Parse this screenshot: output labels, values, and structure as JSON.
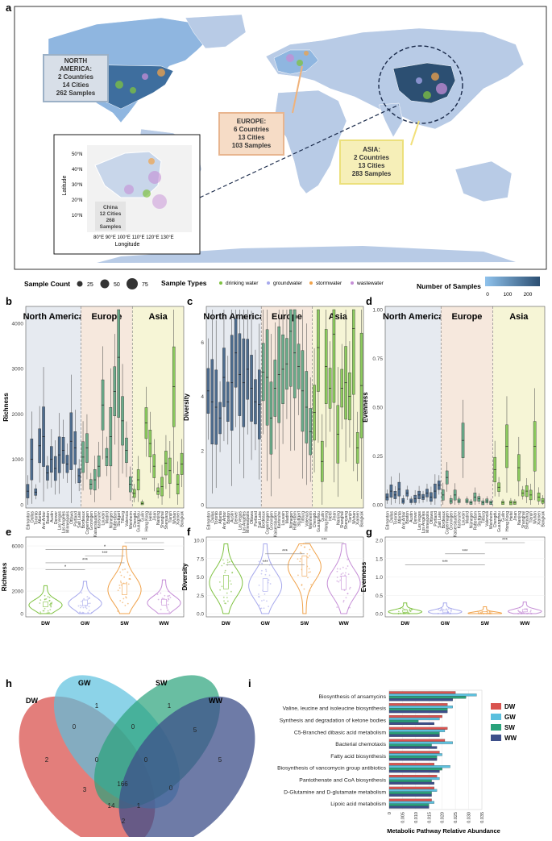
{
  "panel_letters": {
    "a": "a",
    "b": "b",
    "c": "c",
    "d": "d",
    "e": "e",
    "f": "f",
    "g": "g",
    "h": "h",
    "i": "i"
  },
  "colors": {
    "land": "#b8cbe6",
    "ocean": "#ffffff",
    "na": "#3e6e9e",
    "na_light": "#8fb6e0",
    "china": "#2c4f72",
    "dw": "#7fc241",
    "gw": "#a6a8ec",
    "sw": "#f0a24a",
    "ww": "#c58dd6",
    "na_bg": "#e6eaf0",
    "eu_bg": "#f6e8dd",
    "as_bg": "#f6f5d6",
    "box_na": "#4e6d8f",
    "box_eu": "#6aab8a",
    "box_as": "#8ccb5e"
  },
  "map": {
    "north_america_box": {
      "line1": "NORTH",
      "line2": "AMERICA:",
      "line3": "2 Countries",
      "line4": "14 Cities",
      "line5": "262 Samples"
    },
    "europe_box": {
      "line1": "EUROPE:",
      "line2": "6 Countries",
      "line3": "13 Cities",
      "line4": "103 Samples"
    },
    "asia_box": {
      "line1": "ASIA:",
      "line2": "2 Countries",
      "line3": "13 Cities",
      "line4": "283 Samples"
    },
    "inset": {
      "lat_ticks": [
        "50°N",
        "40°N",
        "30°N",
        "20°N",
        "10°N"
      ],
      "lon_ticks": "80°E 90°E 100°E 110°E 120°E 130°E",
      "xlabel": "Longitude",
      "ylabel": "Latitude",
      "china_box": {
        "line1": "China",
        "line2": "12 Cities",
        "line3": "268",
        "line4": "Samples"
      }
    }
  },
  "legend": {
    "sample_count_title": "Sample Count",
    "sizes": [
      "25",
      "50",
      "75"
    ],
    "sample_types_title": "Sample Types",
    "types": [
      "drinking water",
      "groundwater",
      "stormwater",
      "wastewater"
    ],
    "num_samples_title": "Number of Samples",
    "num_ticks": [
      "0",
      "100",
      "200"
    ]
  },
  "regions": [
    "North America",
    "Europe",
    "Asia"
  ],
  "chart_data": [
    {
      "type": "box",
      "panel": "b",
      "ylabel": "Richness",
      "ylim": [
        0,
        4300
      ],
      "yticks": [
        "0",
        "1000",
        "2000",
        "3000",
        "4000"
      ],
      "categories": [
        "Edmonton",
        "Dallas",
        "Toronto",
        "Atlanta",
        "Ann Arbor",
        "Boston",
        "Austin",
        "Denver",
        "Las Vegas",
        "Los Angeles",
        "Minneapolis",
        "Ottawa",
        "Portland",
        "Salt Lake",
        "Bordeaux",
        "Copenhagen",
        "Groningen",
        "Kaiserslautern",
        "Karlsruhe",
        "Louvain",
        "Madrid",
        "Nijmegen",
        "Rotterdam",
        "Stuttgart",
        "Tilburg",
        "Valencia",
        "Weinheim",
        "Chengdu",
        "Guangzhou",
        "Guilin",
        "Hong Kong",
        "Hefei",
        "Jinan",
        "Nanjing",
        "Shanghai",
        "Shenyang",
        "Tianjin",
        "Wuhan",
        "Xiamen",
        "Bangkok"
      ],
      "medians": [
        300,
        1000,
        280,
        1300,
        1500,
        700,
        1000,
        800,
        1100,
        1200,
        900,
        1400,
        1250,
        640,
        1050,
        1250,
        450,
        550,
        850,
        2200,
        1050,
        1500,
        2500,
        3250,
        1850,
        1200,
        450,
        250,
        550,
        30,
        1800,
        1350,
        850,
        300,
        400,
        920,
        750,
        2600,
        450,
        900
      ]
    },
    {
      "type": "box",
      "panel": "c",
      "ylabel": "Diversity",
      "ylim": [
        0,
        7.2
      ],
      "yticks": [
        "0",
        "2",
        "4",
        "6"
      ],
      "categories": [
        "Edmonton",
        "Dallas",
        "Toronto",
        "Atlanta",
        "Ann Arbor",
        "Boston",
        "Austin",
        "Denver",
        "Las Vegas",
        "Los Angeles",
        "Minneapolis",
        "Ottawa",
        "Portland",
        "Salt Lake",
        "Bordeaux",
        "Copenhagen",
        "Groningen",
        "Kaiserslautern",
        "Karlsruhe",
        "Louvain",
        "Madrid",
        "Nijmegen",
        "Rotterdam",
        "Stuttgart",
        "Tilburg",
        "Valencia",
        "Weinheim",
        "Chengdu",
        "Guangzhou",
        "Guilin",
        "Hong Kong",
        "Hefei",
        "Jinan",
        "Nanjing",
        "Shanghai",
        "Shenyang",
        "Tianjin",
        "Wuhan",
        "Xiamen",
        "Bangkok"
      ],
      "medians": [
        4.2,
        3.8,
        3.6,
        3.2,
        4.7,
        3.8,
        4.5,
        5.6,
        4.8,
        4.5,
        5.0,
        4.3,
        3.8,
        3.7,
        4.9,
        4.7,
        3.2,
        4.3,
        4.8,
        5.0,
        5.2,
        6.4,
        5.6,
        5.1,
        4.2,
        3.6,
        2.7,
        3.4,
        5.8,
        1.6,
        5.1,
        4.3,
        6.3,
        2.6,
        4.3,
        4.5,
        4.0,
        6.5,
        2.1,
        4.4
      ]
    },
    {
      "type": "box",
      "panel": "d",
      "ylabel": "Evenness",
      "ylim": [
        0,
        1.0
      ],
      "yticks": [
        "0.00",
        "0.25",
        "0.50",
        "0.75",
        "1.00"
      ],
      "categories": [
        "Edmonton",
        "Dallas",
        "Toronto",
        "Atlanta",
        "Ann Arbor",
        "Boston",
        "Austin",
        "Denver",
        "Las Vegas",
        "Los Angeles",
        "Minneapolis",
        "Ottawa",
        "Portland",
        "Salt Lake",
        "Bordeaux",
        "Copenhagen",
        "Groningen",
        "Kaiserslautern",
        "Karlsruhe",
        "Louvain",
        "Madrid",
        "Nijmegen",
        "Rotterdam",
        "Stuttgart",
        "Tilburg",
        "Valencia",
        "Weinheim",
        "Chengdu",
        "Guangzhou",
        "Guilin",
        "Hong Kong",
        "Hefei",
        "Jinan",
        "Nanjing",
        "Shanghai",
        "Shenyang",
        "Tianjin",
        "Wuhan",
        "Xiamen",
        "Bangkok"
      ],
      "medians": [
        0.04,
        0.07,
        0.05,
        0.08,
        0.02,
        0.06,
        0.02,
        0.03,
        0.05,
        0.04,
        0.06,
        0.04,
        0.07,
        0.1,
        0.05,
        0.14,
        0.02,
        0.05,
        0.02,
        0.33,
        0.02,
        0.01,
        0.04,
        0.03,
        0.01,
        0.02,
        0.01,
        0.18,
        0.09,
        0.01,
        0.3,
        0.01,
        0.01,
        0.19,
        0.06,
        0.07,
        0.05,
        0.3,
        0.04,
        0.02
      ]
    },
    {
      "type": "violin",
      "panel": "e",
      "ylabel": "Richness",
      "ylim": [
        0,
        6500
      ],
      "yticks": [
        "0",
        "2000",
        "4000",
        "6000"
      ],
      "categories": [
        "DW",
        "GW",
        "SW",
        "WW"
      ],
      "medians": [
        750,
        900,
        2100,
        950
      ],
      "significance": [
        "*",
        "***",
        "***",
        "*",
        "***"
      ]
    },
    {
      "type": "violin",
      "panel": "f",
      "ylabel": "Diversity",
      "ylim": [
        0,
        10
      ],
      "yticks": [
        "0.0",
        "2.5",
        "5.0",
        "7.5",
        "10.0"
      ],
      "categories": [
        "DW",
        "GW",
        "SW",
        "WW"
      ],
      "medians": [
        4.2,
        3.8,
        6.4,
        4.1
      ],
      "significance": [
        "***",
        "***",
        "***"
      ]
    },
    {
      "type": "violin",
      "panel": "g",
      "ylabel": "Evenness",
      "ylim": [
        0,
        2.0
      ],
      "yticks": [
        "0.0",
        "0.5",
        "1.0",
        "1.5",
        "2.0"
      ],
      "categories": [
        "DW",
        "GW",
        "SW",
        "WW"
      ],
      "medians": [
        0.05,
        0.05,
        0.01,
        0.06
      ],
      "significance": [
        "***",
        "***",
        "***"
      ]
    },
    {
      "type": "venn",
      "panel": "h",
      "sets": [
        "DW",
        "GW",
        "SW",
        "WW"
      ],
      "regions": [
        "2",
        "1",
        "1",
        "5",
        "0",
        "0",
        "5",
        "0",
        "0",
        "0",
        "3",
        "166",
        "14",
        "1",
        "2"
      ]
    },
    {
      "type": "bar",
      "panel": "i",
      "xlabel": "Metabolic Pathway Relative Abundance",
      "xlim": [
        0,
        0.035
      ],
      "xticks": [
        "0",
        "0.005",
        "0.010",
        "0.015",
        "0.020",
        "0.025",
        "0.030",
        "0.035"
      ],
      "categories": [
        "Biosynthesis of ansamycins",
        "Valine, leucine and isoleucine biosynthesis",
        "Synthesis and degradation of ketone bodies",
        "C5-Branched dibasic acid metabolism",
        "Bacterial chemotaxis",
        "Fatty acid biosynthesis",
        "Biosynthesis of vancomycin group antibiotics",
        "Pantothenate and CoA biosynthesis",
        "D-Glutamine and D-glutamate metabolism",
        "Lipoic acid metabolism"
      ],
      "series": [
        {
          "name": "DW",
          "values": [
            0.025,
            0.022,
            0.02,
            0.022,
            0.021,
            0.019,
            0.017,
            0.018,
            0.017,
            0.016
          ]
        },
        {
          "name": "GW",
          "values": [
            0.033,
            0.024,
            0.019,
            0.021,
            0.024,
            0.02,
            0.023,
            0.019,
            0.018,
            0.017
          ]
        },
        {
          "name": "SW",
          "values": [
            0.029,
            0.022,
            0.011,
            0.019,
            0.016,
            0.018,
            0.02,
            0.016,
            0.016,
            0.015
          ]
        },
        {
          "name": "WW",
          "values": [
            0.024,
            0.022,
            0.017,
            0.019,
            0.018,
            0.018,
            0.019,
            0.017,
            0.016,
            0.015
          ]
        }
      ]
    }
  ]
}
